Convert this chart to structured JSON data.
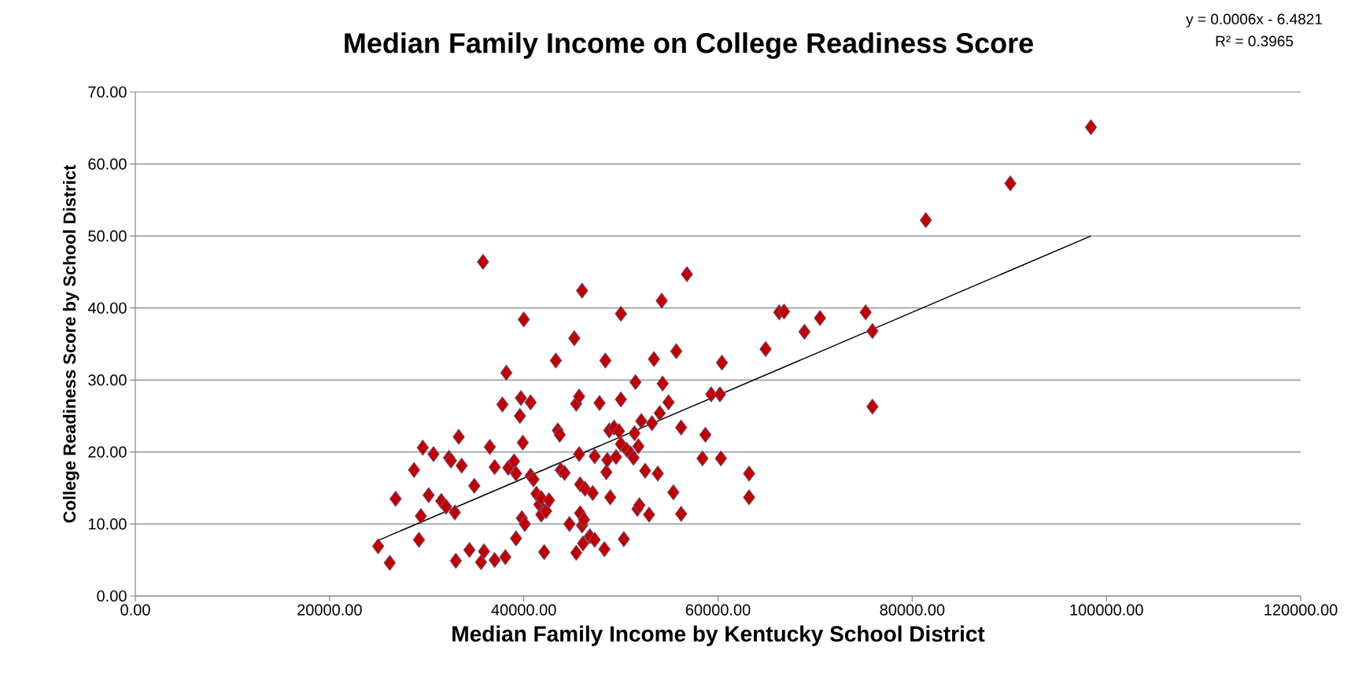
{
  "chart_data": {
    "type": "scatter",
    "title": "Median Family Income on College Readiness Score",
    "xlabel": "Median Family Income by Kentucky School District",
    "ylabel": "College Readiness Score by School District",
    "annotations": [
      "y = 0.0006x - 6.4821",
      "R² = 0.3965"
    ],
    "xlim": [
      0,
      120000
    ],
    "ylim": [
      0,
      70
    ],
    "xticks": [
      {
        "value": 0,
        "label": "0.00"
      },
      {
        "value": 20000,
        "label": "20000.00"
      },
      {
        "value": 40000,
        "label": "40000.00"
      },
      {
        "value": 60000,
        "label": "60000.00"
      },
      {
        "value": 80000,
        "label": "80000.00"
      },
      {
        "value": 100000,
        "label": "100000.00"
      },
      {
        "value": 120000,
        "label": "120000.00"
      }
    ],
    "yticks": [
      {
        "value": 0,
        "label": "0.00"
      },
      {
        "value": 10,
        "label": "10.00"
      },
      {
        "value": 20,
        "label": "20.00"
      },
      {
        "value": 30,
        "label": "30.00"
      },
      {
        "value": 40,
        "label": "40.00"
      },
      {
        "value": 50,
        "label": "50.00"
      },
      {
        "value": 60,
        "label": "60.00"
      },
      {
        "value": 70,
        "label": "70.00"
      }
    ],
    "grid": "y",
    "marker": "diamond",
    "series": [
      {
        "color": "#c00000",
        "x": [
          25000,
          26200,
          26800,
          28700,
          29200,
          29400,
          29600,
          30200,
          30700,
          31500,
          32000,
          32300,
          32500,
          32900,
          33000,
          33300,
          33600,
          34400,
          34900,
          35600,
          35900,
          35800,
          36500,
          37000,
          37000,
          37800,
          38200,
          38100,
          38400,
          39000,
          39200,
          39200,
          39600,
          39700,
          39800,
          39900,
          40000,
          40100,
          40700,
          40700,
          41000,
          41300,
          41600,
          41800,
          41800,
          42100,
          42300,
          42600,
          43300,
          43500,
          43700,
          43800,
          44200,
          44700,
          45200,
          45400,
          45400,
          45700,
          45700,
          45800,
          45800,
          46000,
          46000,
          46100,
          46200,
          46300,
          46800,
          47100,
          47300,
          47300,
          47800,
          48300,
          48400,
          48500,
          48600,
          48800,
          48900,
          49300,
          49500,
          49800,
          50000,
          50000,
          50000,
          50300,
          50600,
          51000,
          51300,
          51400,
          51500,
          51700,
          51800,
          51900,
          52100,
          52500,
          52900,
          53200,
          53400,
          53800,
          54000,
          54200,
          54300,
          54900,
          55400,
          55700,
          56200,
          56200,
          56800,
          58400,
          58700,
          59300,
          60200,
          60400,
          60300,
          63200,
          63200,
          64900,
          66300,
          66800,
          68900,
          70500,
          75200,
          75900,
          75900,
          81400,
          90100,
          98400
        ],
        "values": [
          6.9,
          4.6,
          13.5,
          17.5,
          7.8,
          11.1,
          20.6,
          14.0,
          19.7,
          13.2,
          12.4,
          19.2,
          18.8,
          11.6,
          4.9,
          22.1,
          18.1,
          6.4,
          15.3,
          4.7,
          6.2,
          46.4,
          20.7,
          17.9,
          5.0,
          26.6,
          31.0,
          5.4,
          17.8,
          18.7,
          8.0,
          17.0,
          25.0,
          27.5,
          10.8,
          21.3,
          38.4,
          10.0,
          26.9,
          16.7,
          16.2,
          14.2,
          12.7,
          13.6,
          11.3,
          6.1,
          11.8,
          13.3,
          32.7,
          23.0,
          22.4,
          17.5,
          17.1,
          10.0,
          35.8,
          26.7,
          6.0,
          19.7,
          27.7,
          15.5,
          11.5,
          42.4,
          9.8,
          7.3,
          10.6,
          14.9,
          8.3,
          14.3,
          19.4,
          7.8,
          26.8,
          6.5,
          32.7,
          17.2,
          18.9,
          23.0,
          13.7,
          23.4,
          19.3,
          22.9,
          27.3,
          39.2,
          21.1,
          7.9,
          20.3,
          19.8,
          19.2,
          22.6,
          29.7,
          12.1,
          20.8,
          12.6,
          24.3,
          17.4,
          11.3,
          24.0,
          32.9,
          17.0,
          25.4,
          41.0,
          29.5,
          26.9,
          14.4,
          34.0,
          23.4,
          11.4,
          44.7,
          19.1,
          22.4,
          28.0,
          28.0,
          32.4,
          19.1,
          17.0,
          13.7,
          34.3,
          39.4,
          39.5,
          36.7,
          38.6,
          39.4,
          36.8,
          26.3,
          52.2,
          57.3,
          65.1
        ]
      },
      {
        "type": "line",
        "color": "#000000",
        "marker": "none",
        "x": [
          24800,
          98400
        ],
        "values": [
          7.6,
          50.0
        ]
      }
    ]
  }
}
